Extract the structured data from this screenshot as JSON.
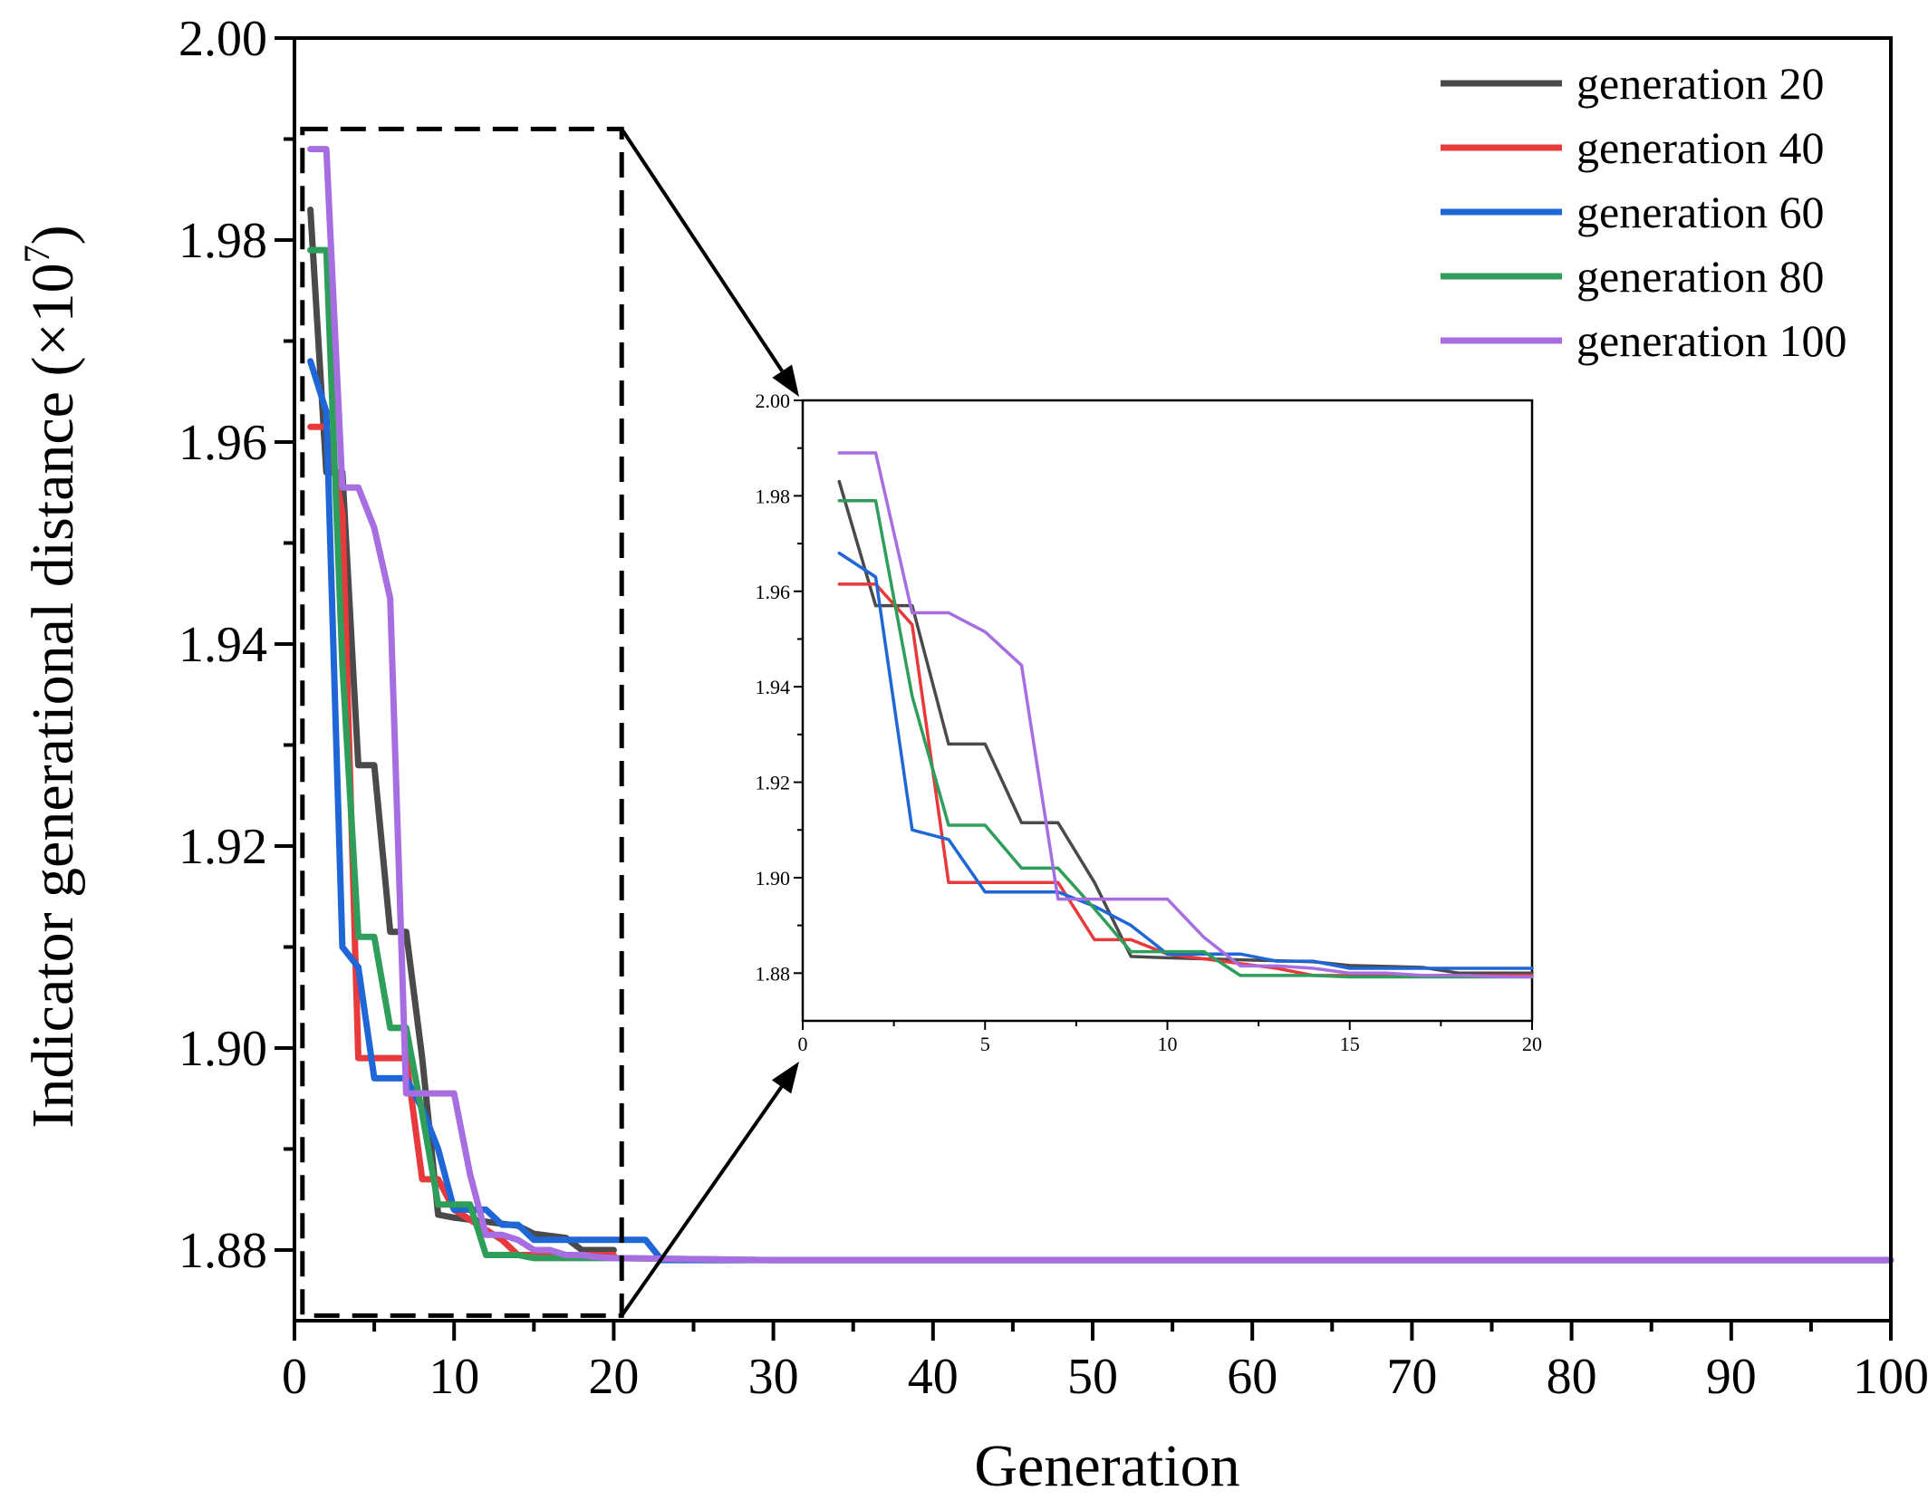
{
  "chart_data": {
    "type": "line",
    "xlabel": "Generation",
    "ylabel": "Indicator generational distance (×10",
    "ylabel_exponent": "7",
    "ylabel_close": ")",
    "xlim": [
      0,
      100
    ],
    "ylim": [
      1.873,
      2.0
    ],
    "xticks": [
      "0",
      "10",
      "20",
      "30",
      "40",
      "50",
      "60",
      "70",
      "80",
      "90",
      "100"
    ],
    "yticks": [
      "1.88",
      "1.90",
      "1.92",
      "1.94",
      "1.96",
      "1.98",
      "2.00"
    ],
    "legend_position": "top-right",
    "inset": {
      "xlim": [
        0,
        20
      ],
      "ylim": [
        1.87,
        2.0
      ],
      "xticks": [
        "0",
        "5",
        "10",
        "15",
        "20"
      ],
      "yticks": [
        "1.88",
        "1.90",
        "1.92",
        "1.94",
        "1.96",
        "1.98",
        "2.00"
      ],
      "zoom_region": {
        "x": [
          0.5,
          20.5
        ],
        "y": [
          1.8735,
          1.991
        ]
      }
    },
    "series": [
      {
        "name": "generation 20",
        "color": "#4a4a4a",
        "x": [
          1,
          2,
          3,
          4,
          5,
          6,
          7,
          8,
          9,
          10,
          11,
          12,
          13,
          14,
          15,
          16,
          17,
          18,
          19,
          20
        ],
        "y": [
          1.983,
          1.957,
          1.957,
          1.928,
          1.928,
          1.9115,
          1.9115,
          1.899,
          1.8835,
          1.8832,
          1.883,
          1.8828,
          1.8826,
          1.8824,
          1.8816,
          1.8814,
          1.8812,
          1.88,
          1.88,
          1.88
        ]
      },
      {
        "name": "generation 40",
        "color": "#e8393c",
        "x": [
          1,
          2,
          3,
          4,
          5,
          6,
          7,
          8,
          9,
          10,
          11,
          12,
          13,
          14,
          15,
          16,
          17,
          18,
          19,
          20
        ],
        "y": [
          1.9615,
          1.9615,
          1.953,
          1.899,
          1.899,
          1.899,
          1.899,
          1.887,
          1.887,
          1.884,
          1.883,
          1.882,
          1.881,
          1.8795,
          1.8795,
          1.8795,
          1.8795,
          1.8795,
          1.8795,
          1.8795
        ]
      },
      {
        "name": "generation 60",
        "color": "#1f66d6",
        "x": [
          1,
          2,
          3,
          4,
          5,
          6,
          7,
          8,
          9,
          10,
          11,
          12,
          13,
          14,
          15,
          16,
          17,
          18,
          19,
          20,
          21,
          22,
          23,
          30,
          50,
          80,
          100
        ],
        "y": [
          1.968,
          1.963,
          1.91,
          1.908,
          1.897,
          1.897,
          1.897,
          1.894,
          1.89,
          1.884,
          1.884,
          1.884,
          1.8825,
          1.8825,
          1.881,
          1.881,
          1.881,
          1.881,
          1.881,
          1.881,
          1.881,
          1.881,
          1.879,
          1.879,
          1.879,
          1.879,
          1.879
        ]
      },
      {
        "name": "generation 80",
        "color": "#2e9e5a",
        "x": [
          1,
          2,
          3,
          4,
          5,
          6,
          7,
          8,
          9,
          10,
          11,
          12,
          13,
          14,
          15,
          16,
          17,
          18,
          19,
          20,
          30,
          50,
          80,
          100
        ],
        "y": [
          1.979,
          1.979,
          1.938,
          1.911,
          1.911,
          1.902,
          1.902,
          1.8935,
          1.8845,
          1.8845,
          1.8845,
          1.8795,
          1.8795,
          1.8795,
          1.8792,
          1.8792,
          1.8792,
          1.8792,
          1.8792,
          1.8792,
          1.879,
          1.879,
          1.879,
          1.879
        ]
      },
      {
        "name": "generation 100",
        "color": "#a66ee0",
        "x": [
          1,
          2,
          3,
          4,
          5,
          6,
          7,
          8,
          9,
          10,
          11,
          12,
          13,
          14,
          15,
          16,
          17,
          18,
          19,
          20,
          30,
          50,
          80,
          100
        ],
        "y": [
          1.989,
          1.989,
          1.9555,
          1.9555,
          1.9515,
          1.9445,
          1.8955,
          1.8955,
          1.8955,
          1.8955,
          1.8875,
          1.8815,
          1.8815,
          1.881,
          1.88,
          1.88,
          1.8795,
          1.8795,
          1.8793,
          1.8792,
          1.879,
          1.879,
          1.879,
          1.879
        ]
      }
    ]
  }
}
